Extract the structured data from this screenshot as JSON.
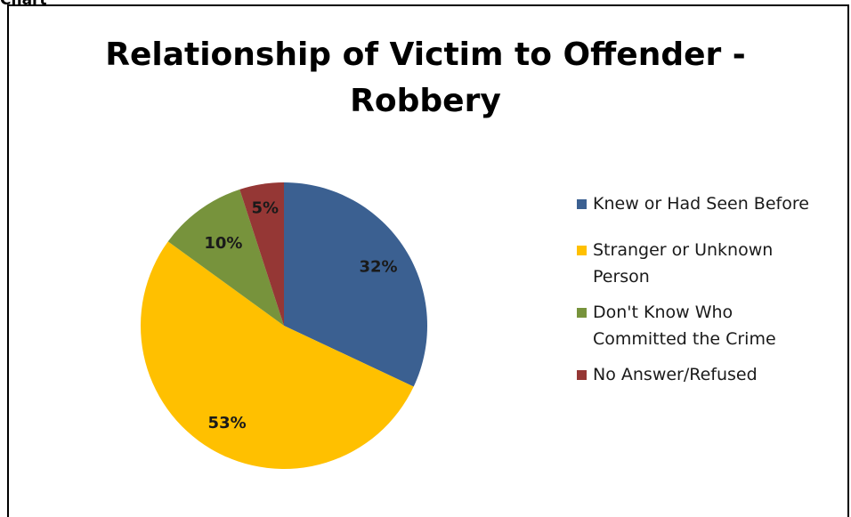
{
  "corner_label": "Chart",
  "chart_data": {
    "type": "pie",
    "title": "Relationship of Victim to Offender - Robbery",
    "title_lines": [
      "Relationship of Victim to Offender -",
      "Robbery"
    ],
    "slices": [
      {
        "label": "Knew or Had Seen Before",
        "value": 32,
        "data_label": "32%",
        "color": "#3b6091"
      },
      {
        "label": "Stranger or Unknown Person",
        "value": 53,
        "data_label": "53%",
        "color": "#ffc000"
      },
      {
        "label": "Don't Know Who Committed the Crime",
        "value": 10,
        "data_label": "10%",
        "color": "#77933c"
      },
      {
        "label": "No Answer/Refused",
        "value": 5,
        "data_label": "5%",
        "color": "#953735"
      }
    ],
    "legend_position": "right"
  },
  "legend": {
    "items": [
      {
        "lines": [
          "Knew or Had Seen Before"
        ],
        "color": "#3b6091"
      },
      {
        "lines": [
          "Stranger or Unknown",
          "Person"
        ],
        "color": "#ffc000"
      },
      {
        "lines": [
          "Don't Know Who",
          "Committed the Crime"
        ],
        "color": "#77933c"
      },
      {
        "lines": [
          "No Answer/Refused"
        ],
        "color": "#953735"
      }
    ]
  }
}
